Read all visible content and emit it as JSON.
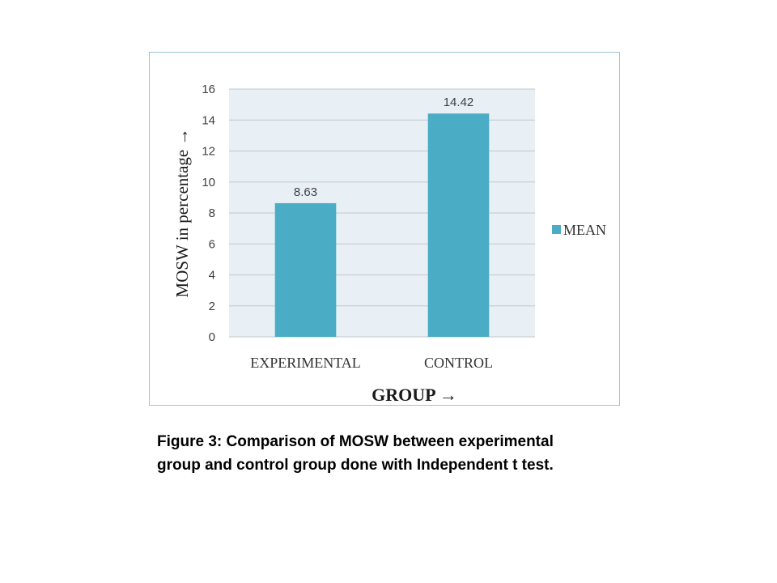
{
  "chart_data": {
    "type": "bar",
    "categories": [
      "EXPERIMENTAL",
      "CONTROL"
    ],
    "series": [
      {
        "name": "MEAN",
        "values": [
          8.63,
          14.42
        ]
      }
    ],
    "data_labels": [
      "8.63",
      "14.42"
    ],
    "xlabel": "GROUP →",
    "ylabel": "MOSW in percentage →",
    "ylim": [
      0,
      16
    ],
    "yticks": [
      0,
      2,
      4,
      6,
      8,
      10,
      12,
      14,
      16
    ],
    "grid": true,
    "legend_position": "right",
    "colors": {
      "bar": "#4bacc6",
      "plot_background": "#e8eff5",
      "gridline": "#c2c8cc",
      "frame_border": "#9ec5d6"
    }
  },
  "caption": {
    "line1": "Figure 3: Comparison of MOSW between experimental",
    "line2": "group and control group done with Independent t test."
  }
}
